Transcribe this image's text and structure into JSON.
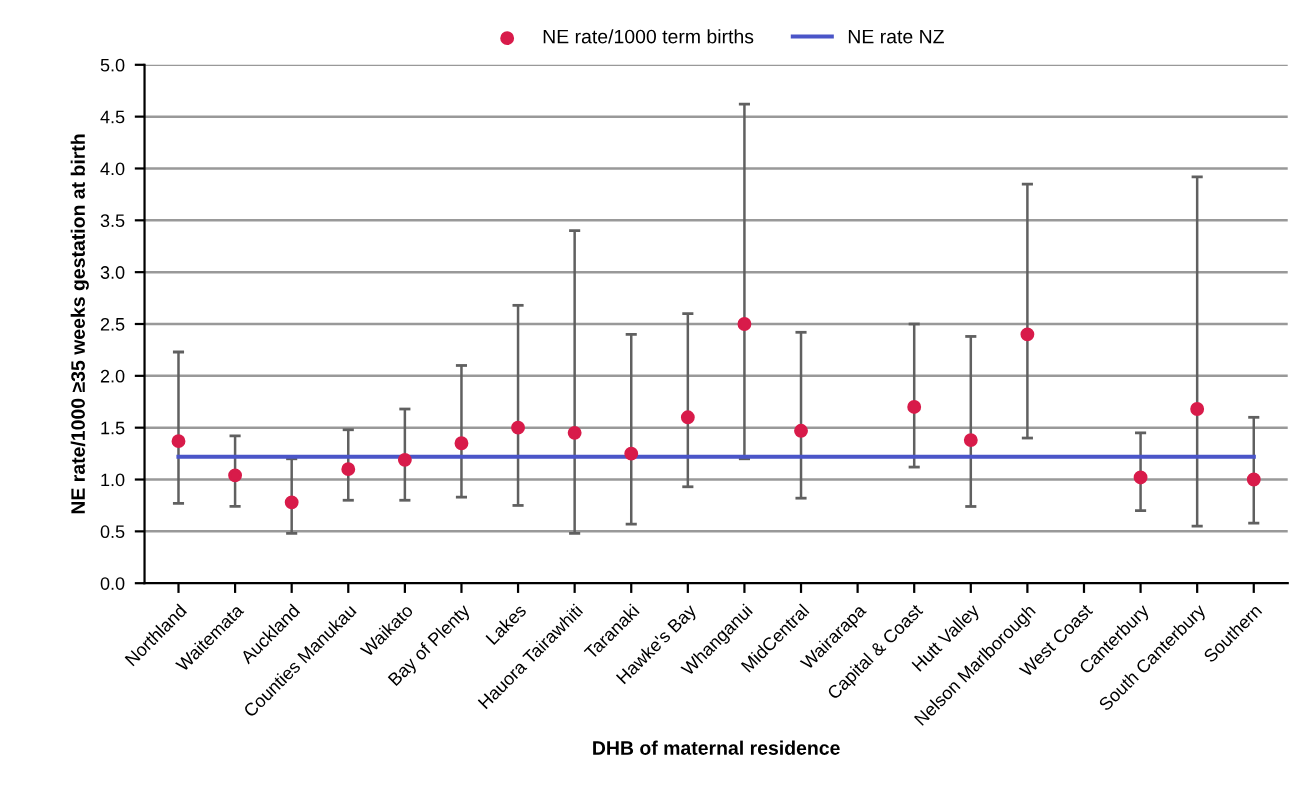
{
  "chart_data": {
    "type": "scatter",
    "categories": [
      "Northland",
      "Waitemata",
      "Auckland",
      "Counties Manukau",
      "Waikato",
      "Bay of Plenty",
      "Lakes",
      "Hauora Tairawhiti",
      "Taranaki",
      "Hawke's Bay",
      "Whanganui",
      "MidCentral",
      "Wairarapa",
      "Capital & Coast",
      "Hutt Valley",
      "Nelson Marlborough",
      "West Coast",
      "Canterbury",
      "South Canterbury",
      "Southern"
    ],
    "series": [
      {
        "name": "NE rate/1000 term births",
        "color": "#d81b4a",
        "marker": "circle",
        "values": [
          1.37,
          1.04,
          0.78,
          1.1,
          1.19,
          1.35,
          1.5,
          1.45,
          1.25,
          1.6,
          2.5,
          1.47,
          null,
          1.7,
          1.38,
          2.4,
          null,
          1.02,
          1.68,
          1.0
        ],
        "errors": [
          [
            0.77,
            2.23
          ],
          [
            0.74,
            1.42
          ],
          [
            0.48,
            1.2
          ],
          [
            0.8,
            1.48
          ],
          [
            0.8,
            1.68
          ],
          [
            0.83,
            2.1
          ],
          [
            0.75,
            2.68
          ],
          [
            0.48,
            3.4
          ],
          [
            0.57,
            2.4
          ],
          [
            0.93,
            2.6
          ],
          [
            1.2,
            4.62
          ],
          [
            0.82,
            2.42
          ],
          null,
          [
            1.12,
            2.5
          ],
          [
            0.74,
            2.38
          ],
          [
            1.4,
            3.85
          ],
          null,
          [
            0.7,
            1.45
          ],
          [
            0.55,
            3.92
          ],
          [
            0.58,
            1.6
          ]
        ]
      },
      {
        "name": "NE rate NZ",
        "type": "line",
        "color": "#4a55c8",
        "marker": "none",
        "line_style": "solid",
        "values": [
          1.22,
          1.22,
          1.22,
          1.22,
          1.22,
          1.22,
          1.22,
          1.22,
          1.22,
          1.22,
          1.22,
          1.22,
          1.22,
          1.22,
          1.22,
          1.22,
          1.22,
          1.22,
          1.22,
          1.22
        ]
      }
    ],
    "xlabel": "DHB of maternal residence",
    "ylabel": "NE rate/1000 ≥35 weeks gestation at birth",
    "ylim": [
      0,
      5
    ],
    "yticks": [
      {
        "value": 0,
        "label": "0.0"
      },
      {
        "value": 0.5,
        "label": "0.5"
      },
      {
        "value": 1,
        "label": "1.0"
      },
      {
        "value": 1.5,
        "label": "1.5"
      },
      {
        "value": 2,
        "label": "2.0"
      },
      {
        "value": 2.5,
        "label": "2.5"
      },
      {
        "value": 3,
        "label": "3.0"
      },
      {
        "value": 3.5,
        "label": "3.5"
      },
      {
        "value": 4,
        "label": "4.0"
      },
      {
        "value": 4.5,
        "label": "4.5"
      },
      {
        "value": 5,
        "label": "5.0"
      }
    ],
    "grid": "y",
    "legend": "top"
  }
}
